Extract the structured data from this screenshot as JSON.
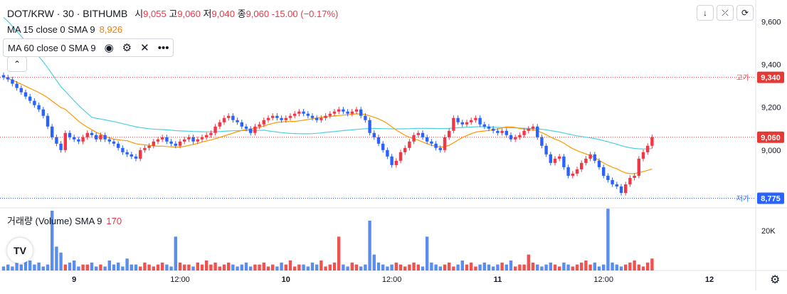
{
  "header": {
    "symbol": "DOT/KRW · 30 · BITHUMB",
    "open_label": "시",
    "open": "9,055",
    "high_label": "고",
    "high": "9,060",
    "low_label": "저",
    "low": "9,040",
    "close_label": "종",
    "close": "9,060",
    "change": "-15.00 (−0.17%)"
  },
  "indicators": {
    "ma15_label": "MA 15 close 0 SMA 9",
    "ma15_value": "8,926",
    "ma60_label": "MA 60 close 0 SMA 9",
    "volume_label": "거래량 (Volume) SMA 9",
    "volume_value": "170"
  },
  "controls": {
    "collapse_glyph": "⌃",
    "eye_glyph": "◉",
    "settings_glyph": "⚙",
    "close_glyph": "✕",
    "more_glyph": "•••",
    "logo": "TV"
  },
  "colors": {
    "up": "#f23645",
    "down": "#2962ff",
    "ma15": "#ff9800",
    "ma60": "#4dd0e1",
    "volume_up": "#ef5350",
    "volume_down": "#5b8def"
  },
  "chart_data": [
    {
      "type": "candlestick",
      "title": "DOT/KRW · 30 · BITHUMB",
      "ylim": [
        8750,
        9700
      ],
      "y_ticks": [
        "9,600",
        "9,400",
        "9,200",
        "9,000"
      ],
      "y_tick_values": [
        9600,
        9400,
        9200,
        9000
      ],
      "x_tick_labels": [
        "9",
        "12:00",
        "10",
        "12:00",
        "11",
        "12:00",
        "12"
      ],
      "x_tick_bar_index": [
        16,
        40,
        64,
        88,
        112,
        136,
        160
      ],
      "price_lines": [
        {
          "label": "고가",
          "value": 9340,
          "display": "9,340",
          "color": "#e53935"
        },
        {
          "label": "저가",
          "value": 8775,
          "display": "8,775",
          "color": "#2962ff"
        },
        {
          "label": "",
          "value": 9060,
          "display": "9,060",
          "color": "#e53935",
          "current": true
        }
      ],
      "close": [
        9340,
        9330,
        9310,
        9290,
        9270,
        9250,
        9230,
        9210,
        9190,
        9160,
        9110,
        9060,
        9030,
        9000,
        9080,
        9060,
        9050,
        9040,
        9060,
        9080,
        9070,
        9050,
        9070,
        9050,
        9040,
        9030,
        9010,
        8990,
        8980,
        8970,
        8960,
        9000,
        9010,
        9020,
        9040,
        9050,
        9060,
        9040,
        9030,
        9020,
        9040,
        9050,
        9060,
        9040,
        9050,
        9060,
        9070,
        9080,
        9110,
        9130,
        9150,
        9160,
        9140,
        9130,
        9110,
        9100,
        9080,
        9110,
        9120,
        9140,
        9150,
        9160,
        9150,
        9140,
        9150,
        9160,
        9170,
        9180,
        9170,
        9160,
        9150,
        9140,
        9150,
        9160,
        9170,
        9180,
        9190,
        9180,
        9170,
        9180,
        9190,
        9160,
        9140,
        9080,
        9060,
        9030,
        9000,
        8970,
        8930,
        8950,
        8990,
        9010,
        9040,
        9070,
        9080,
        9060,
        9040,
        9030,
        9010,
        9000,
        9060,
        9090,
        9150,
        9130,
        9120,
        9130,
        9140,
        9150,
        9120,
        9110,
        9100,
        9090,
        9080,
        9090,
        9070,
        9050,
        9060,
        9070,
        9090,
        9100,
        9110,
        9060,
        9020,
        8980,
        8940,
        8960,
        8970,
        8920,
        8880,
        8890,
        8910,
        8940,
        8960,
        8980,
        8950,
        8920,
        8880,
        8860,
        8840,
        8830,
        8800,
        8840,
        8870,
        8880,
        8960,
        8990,
        9020,
        9060
      ],
      "volume_note": "SMA 9 = 170",
      "volume_ytick": "20K",
      "volume_ytick_value": 20000,
      "volume_ylim": [
        0,
        30000
      ],
      "volume": [
        2,
        3,
        2,
        4,
        3,
        6,
        5,
        3,
        4,
        2,
        3,
        30,
        12,
        9,
        3,
        4,
        5,
        2,
        3,
        3,
        4,
        2,
        3,
        2,
        5,
        3,
        4,
        2,
        6,
        3,
        3,
        2,
        4,
        3,
        2,
        3,
        4,
        3,
        2,
        17,
        4,
        3,
        3,
        2,
        4,
        3,
        5,
        3,
        4,
        2,
        3,
        4,
        3,
        2,
        3,
        4,
        2,
        3,
        3,
        4,
        2,
        3,
        2,
        4,
        3,
        5,
        2,
        3,
        3,
        2,
        4,
        3,
        5,
        2,
        3,
        4,
        17,
        3,
        2,
        4,
        3,
        2,
        3,
        25,
        8,
        4,
        3,
        2,
        3,
        4,
        3,
        2,
        3,
        4,
        3,
        2,
        17,
        4,
        3,
        2,
        3,
        4,
        2,
        3,
        5,
        3,
        4,
        2,
        3,
        4,
        3,
        2,
        3,
        4,
        3,
        5,
        2,
        3,
        3,
        8,
        4,
        3,
        2,
        3,
        4,
        3,
        2,
        4,
        3,
        2,
        3,
        4,
        5,
        3,
        4,
        2,
        3,
        31,
        4,
        3,
        2,
        3,
        4,
        5,
        3,
        2,
        4,
        6
      ]
    }
  ]
}
